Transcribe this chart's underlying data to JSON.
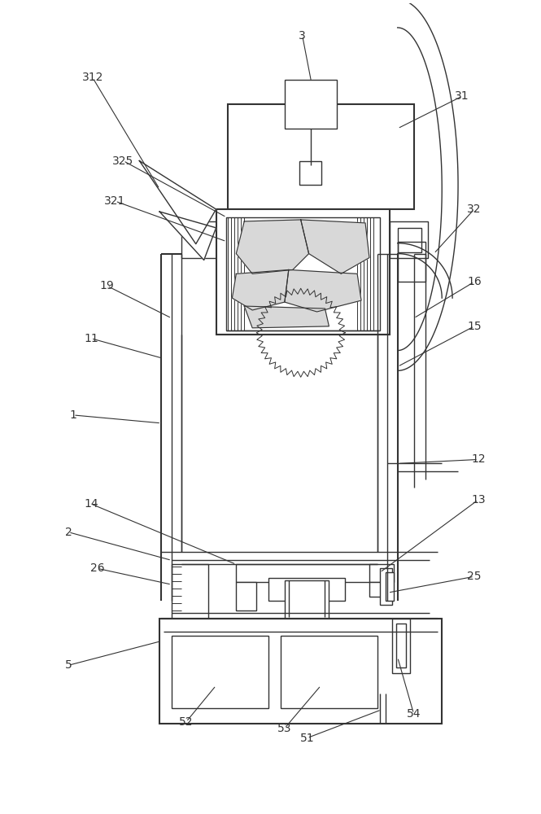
{
  "bg_color": "#ffffff",
  "line_color": "#333333",
  "figsize": [
    6.65,
    10.0
  ],
  "dpi": 100,
  "lw": 1.0,
  "lw2": 1.5,
  "lw3": 2.0
}
